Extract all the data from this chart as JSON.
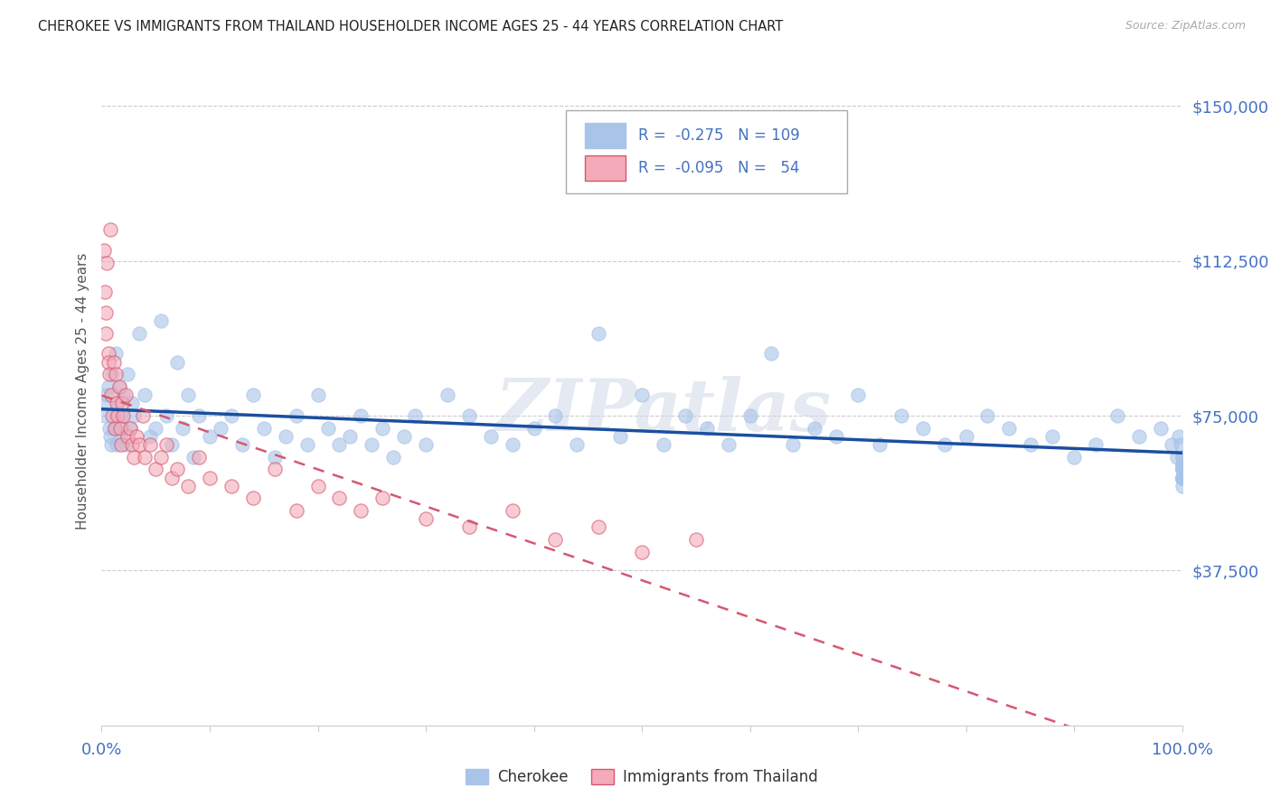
{
  "title": "CHEROKEE VS IMMIGRANTS FROM THAILAND HOUSEHOLDER INCOME AGES 25 - 44 YEARS CORRELATION CHART",
  "source": "Source: ZipAtlas.com",
  "ylabel": "Householder Income Ages 25 - 44 years",
  "ytick_labels": [
    "$37,500",
    "$75,000",
    "$112,500",
    "$150,000"
  ],
  "ytick_values": [
    37500,
    75000,
    112500,
    150000
  ],
  "ymin": 0,
  "ymax": 162000,
  "xmin": 0.0,
  "xmax": 1.0,
  "legend_cherokee": "Cherokee",
  "legend_thailand": "Immigrants from Thailand",
  "r_cherokee": -0.275,
  "n_cherokee": 109,
  "r_thailand": -0.095,
  "n_thailand": 54,
  "cherokee_color": "#a8c4e8",
  "cherokee_line_color": "#1a4fa0",
  "thailand_color": "#f4aab8",
  "thailand_line_color": "#d45870",
  "watermark": "ZIPatlas",
  "title_color": "#222222",
  "axis_label_color": "#4472c4",
  "grid_color": "#cccccc",
  "cherokee_x": [
    0.003,
    0.004,
    0.005,
    0.006,
    0.007,
    0.008,
    0.009,
    0.01,
    0.011,
    0.012,
    0.013,
    0.014,
    0.015,
    0.016,
    0.017,
    0.018,
    0.019,
    0.02,
    0.022,
    0.024,
    0.026,
    0.028,
    0.03,
    0.035,
    0.04,
    0.045,
    0.05,
    0.055,
    0.06,
    0.065,
    0.07,
    0.075,
    0.08,
    0.085,
    0.09,
    0.1,
    0.11,
    0.12,
    0.13,
    0.14,
    0.15,
    0.16,
    0.17,
    0.18,
    0.19,
    0.2,
    0.21,
    0.22,
    0.23,
    0.24,
    0.25,
    0.26,
    0.27,
    0.28,
    0.29,
    0.3,
    0.32,
    0.34,
    0.36,
    0.38,
    0.4,
    0.42,
    0.44,
    0.46,
    0.48,
    0.5,
    0.52,
    0.54,
    0.56,
    0.58,
    0.6,
    0.62,
    0.64,
    0.66,
    0.68,
    0.7,
    0.72,
    0.74,
    0.76,
    0.78,
    0.8,
    0.82,
    0.84,
    0.86,
    0.88,
    0.9,
    0.92,
    0.94,
    0.96,
    0.98,
    0.99,
    0.995,
    0.997,
    0.999,
    1.0,
    1.0,
    1.0,
    1.0,
    1.0,
    1.0,
    1.0,
    1.0,
    1.0,
    1.0,
    1.0,
    1.0,
    1.0,
    1.0,
    1.0
  ],
  "cherokee_y": [
    75000,
    78000,
    80000,
    82000,
    72000,
    70000,
    68000,
    85000,
    72000,
    75000,
    90000,
    68000,
    78000,
    82000,
    70000,
    75000,
    72000,
    80000,
    68000,
    85000,
    72000,
    78000,
    75000,
    95000,
    80000,
    70000,
    72000,
    98000,
    75000,
    68000,
    88000,
    72000,
    80000,
    65000,
    75000,
    70000,
    72000,
    75000,
    68000,
    80000,
    72000,
    65000,
    70000,
    75000,
    68000,
    80000,
    72000,
    68000,
    70000,
    75000,
    68000,
    72000,
    65000,
    70000,
    75000,
    68000,
    80000,
    75000,
    70000,
    68000,
    72000,
    75000,
    68000,
    95000,
    70000,
    80000,
    68000,
    75000,
    72000,
    68000,
    75000,
    90000,
    68000,
    72000,
    70000,
    80000,
    68000,
    75000,
    72000,
    68000,
    70000,
    75000,
    72000,
    68000,
    70000,
    65000,
    68000,
    75000,
    70000,
    72000,
    68000,
    65000,
    70000,
    68000,
    62000,
    65000,
    60000,
    63000,
    60000,
    62000,
    65000,
    60000,
    62000,
    60000,
    58000,
    63000,
    60000,
    62000,
    60000
  ],
  "thailand_x": [
    0.002,
    0.003,
    0.004,
    0.004,
    0.005,
    0.006,
    0.006,
    0.007,
    0.008,
    0.009,
    0.01,
    0.011,
    0.012,
    0.013,
    0.014,
    0.015,
    0.016,
    0.017,
    0.018,
    0.019,
    0.02,
    0.022,
    0.024,
    0.026,
    0.028,
    0.03,
    0.032,
    0.035,
    0.038,
    0.04,
    0.045,
    0.05,
    0.055,
    0.06,
    0.065,
    0.07,
    0.08,
    0.09,
    0.1,
    0.12,
    0.14,
    0.16,
    0.18,
    0.2,
    0.22,
    0.24,
    0.26,
    0.3,
    0.34,
    0.38,
    0.42,
    0.46,
    0.5,
    0.55
  ],
  "thailand_y": [
    115000,
    105000,
    100000,
    95000,
    112000,
    90000,
    88000,
    85000,
    120000,
    80000,
    75000,
    88000,
    72000,
    85000,
    78000,
    75000,
    82000,
    72000,
    68000,
    78000,
    75000,
    80000,
    70000,
    72000,
    68000,
    65000,
    70000,
    68000,
    75000,
    65000,
    68000,
    62000,
    65000,
    68000,
    60000,
    62000,
    58000,
    65000,
    60000,
    58000,
    55000,
    62000,
    52000,
    58000,
    55000,
    52000,
    55000,
    50000,
    48000,
    52000,
    45000,
    48000,
    42000,
    45000
  ]
}
